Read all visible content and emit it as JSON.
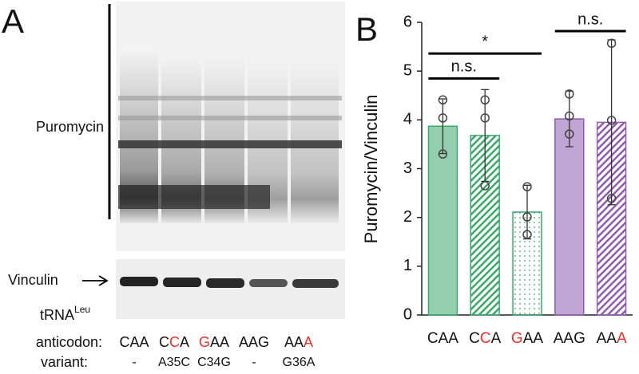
{
  "panel_a": {
    "panel_label": "A",
    "blot_label": "Puromycin",
    "loading_label": "Vinculin",
    "trna_label": {
      "text": "tRNA",
      "superscript": "Leu"
    },
    "anticodon_label": "anticodon:",
    "variant_label": "variant:",
    "lanes": [
      {
        "anticodon": [
          {
            "text": "C"
          },
          {
            "text": "A"
          },
          {
            "text": "A"
          }
        ],
        "variant": "-"
      },
      {
        "anticodon": [
          {
            "text": "C"
          },
          {
            "text": "C",
            "color": "#e8302a"
          },
          {
            "text": "A"
          }
        ],
        "variant": "A35C"
      },
      {
        "anticodon": [
          {
            "text": "G",
            "color": "#e8302a"
          },
          {
            "text": "A"
          },
          {
            "text": "A"
          }
        ],
        "variant": "C34G"
      },
      {
        "anticodon": [
          {
            "text": "A"
          },
          {
            "text": "A"
          },
          {
            "text": "G"
          }
        ],
        "variant": "-"
      },
      {
        "anticodon": [
          {
            "text": "A"
          },
          {
            "text": "A"
          },
          {
            "text": "A",
            "color": "#e8302a"
          }
        ],
        "variant": "G36A"
      }
    ]
  },
  "chart_data": {
    "type": "bar",
    "panel_label": "B",
    "y_label": "Puromycin/Vinculin",
    "categories": [
      [
        {
          "text": "C"
        },
        {
          "text": "A"
        },
        {
          "text": "A"
        }
      ],
      [
        {
          "text": "C"
        },
        {
          "text": "C",
          "color": "#e8302a"
        },
        {
          "text": "A"
        }
      ],
      [
        {
          "text": "G",
          "color": "#e8302a"
        },
        {
          "text": "A"
        },
        {
          "text": "A"
        }
      ],
      [
        {
          "text": "A"
        },
        {
          "text": "A"
        },
        {
          "text": "G"
        }
      ],
      [
        {
          "text": "A"
        },
        {
          "text": "A"
        },
        {
          "text": "A",
          "color": "#e8302a"
        }
      ]
    ],
    "values": [
      3.87,
      3.68,
      2.11,
      4.02,
      3.95
    ],
    "errors": [
      0.56,
      0.94,
      0.55,
      0.57,
      1.69
    ],
    "points": [
      [
        4.41,
        4.04,
        3.3
      ],
      [
        4.41,
        4.04,
        2.65
      ],
      [
        2.63,
        2.01,
        1.65
      ],
      [
        4.53,
        4.08,
        3.71
      ],
      [
        5.57,
        3.99,
        2.39
      ]
    ],
    "colors": [
      "#3aa86b",
      "#3aa86b",
      "#3aa86b",
      "#8e5bb0",
      "#8e5bb0"
    ],
    "fills": [
      "solid",
      "hatch",
      "dots",
      "solid",
      "hatch"
    ],
    "ylim": [
      0,
      6
    ],
    "yticks": [
      0,
      1,
      2,
      3,
      4,
      5,
      6
    ],
    "brackets": [
      {
        "from": 0,
        "to": 1,
        "y": 4.85,
        "label": "n.s."
      },
      {
        "from": 0,
        "to": 2,
        "y": 5.36,
        "label": "*"
      },
      {
        "from": 3,
        "to": 4,
        "y": 5.82,
        "label": "n.s."
      }
    ]
  }
}
